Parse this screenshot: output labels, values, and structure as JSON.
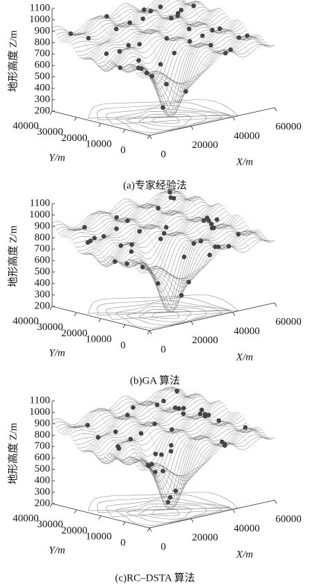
{
  "chart_data": [
    {
      "type": "surface3d",
      "caption": "(a)专家经验法",
      "zlabel": "地形高度 Z/m",
      "xlabel": "X/m",
      "ylabel": "Y/m",
      "xlim": [
        0,
        60000
      ],
      "ylim": [
        0,
        40000
      ],
      "zlim": [
        200,
        1100
      ],
      "xticks": [
        0,
        20000,
        40000,
        60000
      ],
      "yticks": [
        0,
        10000,
        20000,
        30000,
        40000
      ],
      "zticks": [
        200,
        300,
        400,
        500,
        600,
        700,
        800,
        900,
        1000,
        1100
      ]
    },
    {
      "type": "surface3d",
      "caption": "(b)GA 算法",
      "zlabel": "地形高度 Z/m",
      "xlabel": "X/m",
      "ylabel": "Y/m",
      "xlim": [
        0,
        60000
      ],
      "ylim": [
        0,
        40000
      ],
      "zlim": [
        200,
        1100
      ],
      "xticks": [
        0,
        20000,
        40000,
        60000
      ],
      "yticks": [
        0,
        10000,
        20000,
        30000,
        40000
      ],
      "zticks": [
        200,
        300,
        400,
        500,
        600,
        700,
        800,
        900,
        1000,
        1100
      ]
    },
    {
      "type": "surface3d",
      "caption": "(c)RC–DSTA 算法",
      "zlabel": "地形高度 Z/m",
      "xlabel": "X/m",
      "ylabel": "Y/m",
      "xlim": [
        0,
        60000
      ],
      "ylim": [
        0,
        40000
      ],
      "zlim": [
        200,
        1100
      ],
      "xticks": [
        0,
        20000,
        40000,
        60000
      ],
      "yticks": [
        0,
        10000,
        20000,
        30000,
        40000
      ],
      "zticks": [
        200,
        300,
        400,
        500,
        600,
        700,
        800,
        900,
        1000,
        1100
      ]
    }
  ]
}
